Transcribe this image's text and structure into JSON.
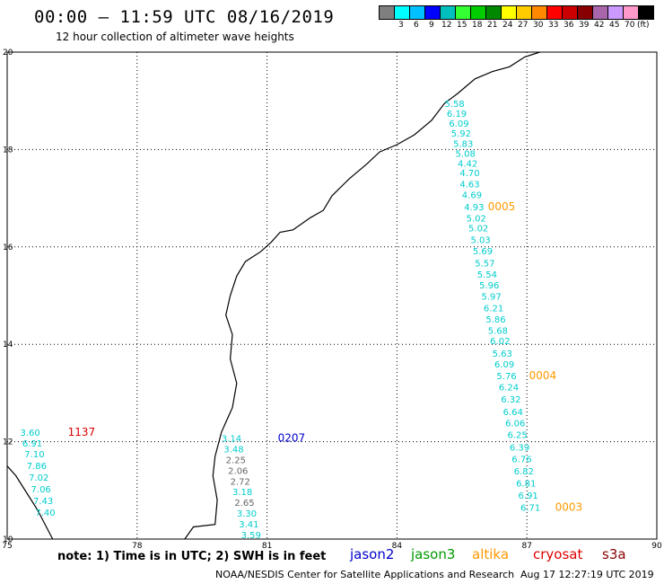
{
  "header": {
    "title": "00:00 – 11:59 UTC 08/16/2019",
    "subtitle": "12 hour collection of altimeter wave heights"
  },
  "legend": {
    "unit": "(ft)",
    "items": [
      {
        "label": "",
        "color": "#7f7f7f"
      },
      {
        "label": "3",
        "color": "#00ffff"
      },
      {
        "label": "6",
        "color": "#00c0ff"
      },
      {
        "label": "9",
        "color": "#0000ff"
      },
      {
        "label": "12",
        "color": "#00bfbf"
      },
      {
        "label": "15",
        "color": "#33ff33"
      },
      {
        "label": "18",
        "color": "#00cc00"
      },
      {
        "label": "21",
        "color": "#008800"
      },
      {
        "label": "24",
        "color": "#ffff00"
      },
      {
        "label": "27",
        "color": "#ffcc00"
      },
      {
        "label": "30",
        "color": "#ff8800"
      },
      {
        "label": "33",
        "color": "#ff0000"
      },
      {
        "label": "36",
        "color": "#cc0000"
      },
      {
        "label": "39",
        "color": "#880000"
      },
      {
        "label": "42",
        "color": "#aa66aa"
      },
      {
        "label": "45",
        "color": "#cc99ff"
      },
      {
        "label": "70",
        "color": "#ff99cc"
      },
      {
        "label": "",
        "color": "#000000"
      }
    ]
  },
  "axes": {
    "lon_ticks": [
      "75",
      "78",
      "81",
      "84",
      "87",
      "90"
    ],
    "lat_ticks": [
      "20",
      "18",
      "16",
      "14",
      "12",
      "10"
    ]
  },
  "tracks": [
    {
      "id": "0005",
      "color": "#ff9900",
      "values": [
        {
          "lon": 85.1,
          "lat": 18.87,
          "v": "5.58",
          "c": "#00cccc"
        },
        {
          "lon": 85.15,
          "lat": 18.67,
          "v": "6.19",
          "c": "#00cccc"
        },
        {
          "lon": 85.2,
          "lat": 18.47,
          "v": "6.09",
          "c": "#00cccc"
        },
        {
          "lon": 85.25,
          "lat": 18.27,
          "v": "5.92",
          "c": "#00cccc"
        },
        {
          "lon": 85.3,
          "lat": 18.05,
          "v": "5.83",
          "c": "#00cccc"
        },
        {
          "lon": 85.35,
          "lat": 17.85,
          "v": "5.08",
          "c": "#00cccc"
        },
        {
          "lon": 85.4,
          "lat": 17.65,
          "v": "4.42",
          "c": "#00cccc"
        },
        {
          "lon": 85.45,
          "lat": 17.45,
          "v": "4.70",
          "c": "#00cccc"
        },
        {
          "lon": 85.45,
          "lat": 17.22,
          "v": "4.63",
          "c": "#00cccc"
        },
        {
          "lon": 85.5,
          "lat": 17.0,
          "v": "4.69",
          "c": "#00cccc"
        },
        {
          "lon": 85.55,
          "lat": 16.75,
          "v": "4.93",
          "c": "#00cccc"
        },
        {
          "lon": 85.6,
          "lat": 16.52,
          "v": "5.02",
          "c": "#00cccc"
        },
        {
          "lon": 85.65,
          "lat": 16.32,
          "v": "5.02",
          "c": "#00cccc"
        },
        {
          "lon": 85.7,
          "lat": 16.08,
          "v": "5.03",
          "c": "#00cccc"
        },
        {
          "lon": 85.75,
          "lat": 15.85,
          "v": "5.69",
          "c": "#00cccc"
        },
        {
          "lon": 85.8,
          "lat": 15.6,
          "v": "5.57",
          "c": "#00cccc"
        },
        {
          "lon": 85.85,
          "lat": 15.37,
          "v": "5.54",
          "c": "#00cccc"
        },
        {
          "lon": 85.9,
          "lat": 15.15,
          "v": "5.96",
          "c": "#00cccc"
        },
        {
          "lon": 85.95,
          "lat": 14.92,
          "v": "5.97",
          "c": "#00cccc"
        }
      ],
      "label": {
        "lon": 86.1,
        "lat": 16.75
      }
    },
    {
      "id": "0004",
      "color": "#ff9900",
      "values": [
        {
          "lon": 86.0,
          "lat": 14.68,
          "v": "6.21",
          "c": "#00cccc"
        },
        {
          "lon": 86.05,
          "lat": 14.45,
          "v": "5.86",
          "c": "#00cccc"
        },
        {
          "lon": 86.1,
          "lat": 14.22,
          "v": "5.68",
          "c": "#00cccc"
        },
        {
          "lon": 86.15,
          "lat": 14.0,
          "v": "6.02",
          "c": "#00cccc"
        },
        {
          "lon": 86.2,
          "lat": 13.75,
          "v": "5.63",
          "c": "#00cccc"
        },
        {
          "lon": 86.25,
          "lat": 13.52,
          "v": "6.09",
          "c": "#00cccc"
        },
        {
          "lon": 86.3,
          "lat": 13.28,
          "v": "5.76",
          "c": "#00cccc"
        },
        {
          "lon": 86.35,
          "lat": 13.05,
          "v": "6.24",
          "c": "#00cccc"
        },
        {
          "lon": 86.4,
          "lat": 12.8,
          "v": "6.32",
          "c": "#00cccc"
        },
        {
          "lon": 86.45,
          "lat": 12.55,
          "v": "6.64",
          "c": "#00cccc"
        },
        {
          "lon": 86.5,
          "lat": 12.32,
          "v": "6.06",
          "c": "#00cccc"
        },
        {
          "lon": 86.55,
          "lat": 12.08,
          "v": "6.25",
          "c": "#00cccc"
        },
        {
          "lon": 86.6,
          "lat": 11.82,
          "v": "6.39",
          "c": "#00cccc"
        },
        {
          "lon": 86.65,
          "lat": 11.58,
          "v": "6.76",
          "c": "#00cccc"
        },
        {
          "lon": 86.7,
          "lat": 11.33,
          "v": "6.82",
          "c": "#00cccc"
        },
        {
          "lon": 86.75,
          "lat": 11.08,
          "v": "6.81",
          "c": "#00cccc"
        },
        {
          "lon": 86.8,
          "lat": 10.83,
          "v": "6.91",
          "c": "#00cccc"
        },
        {
          "lon": 86.85,
          "lat": 10.58,
          "v": "6.71",
          "c": "#00cccc"
        }
      ],
      "label": {
        "lon": 87.05,
        "lat": 13.28
      }
    },
    {
      "id": "0003",
      "color": "#ff9900",
      "values": [],
      "label": {
        "lon": 87.65,
        "lat": 10.58
      }
    },
    {
      "id": "0207",
      "color": "#0000cc",
      "values": [
        {
          "lon": 79.95,
          "lat": 12.0,
          "v": "3.14",
          "c": "#00cccc"
        },
        {
          "lon": 80.0,
          "lat": 11.78,
          "v": "3.48",
          "c": "#00cccc"
        },
        {
          "lon": 80.05,
          "lat": 11.56,
          "v": "2.25",
          "c": "#666666"
        },
        {
          "lon": 80.1,
          "lat": 11.34,
          "v": "2.06",
          "c": "#666666"
        },
        {
          "lon": 80.15,
          "lat": 11.12,
          "v": "2.72",
          "c": "#666666"
        },
        {
          "lon": 80.2,
          "lat": 10.9,
          "v": "3.18",
          "c": "#00cccc"
        },
        {
          "lon": 80.25,
          "lat": 10.68,
          "v": "2.65",
          "c": "#666666"
        },
        {
          "lon": 80.3,
          "lat": 10.46,
          "v": "3.30",
          "c": "#00cccc"
        },
        {
          "lon": 80.35,
          "lat": 10.24,
          "v": "3.41",
          "c": "#00cccc"
        },
        {
          "lon": 80.4,
          "lat": 10.02,
          "v": "3.59",
          "c": "#00cccc"
        }
      ],
      "label": {
        "lon": 81.25,
        "lat": 12.0
      }
    },
    {
      "id": "1137",
      "color": "#dd0000",
      "values": [
        {
          "lon": 75.3,
          "lat": 12.12,
          "v": "3.60",
          "c": "#00cccc"
        },
        {
          "lon": 75.35,
          "lat": 11.9,
          "v": "6.91",
          "c": "#00cccc"
        },
        {
          "lon": 75.4,
          "lat": 11.68,
          "v": "7.10",
          "c": "#00cccc"
        },
        {
          "lon": 75.45,
          "lat": 11.44,
          "v": "7.86",
          "c": "#00cccc"
        },
        {
          "lon": 75.5,
          "lat": 11.2,
          "v": "7.02",
          "c": "#00cccc"
        },
        {
          "lon": 75.55,
          "lat": 10.96,
          "v": "7.06",
          "c": "#00cccc"
        },
        {
          "lon": 75.6,
          "lat": 10.72,
          "v": "7.43",
          "c": "#00cccc"
        },
        {
          "lon": 75.65,
          "lat": 10.48,
          "v": "7.40",
          "c": "#00cccc"
        }
      ],
      "label": {
        "lon": 76.4,
        "lat": 12.12
      }
    }
  ],
  "footer": {
    "note": "note: 1) Time is in UTC; 2) SWH is in feet",
    "satellites": [
      {
        "name": "jason2",
        "color": "#0000cc"
      },
      {
        "name": "jason3",
        "color": "#009900"
      },
      {
        "name": "altika",
        "color": "#ff9900"
      },
      {
        "name": "cryosat",
        "color": "#dd0000"
      },
      {
        "name": "s3a",
        "color": "#880000"
      }
    ],
    "credit": "NOAA/NESDIS Center for Satellite Applications and Research",
    "timestamp": "Aug 17 12:27:19 UTC 2019"
  }
}
